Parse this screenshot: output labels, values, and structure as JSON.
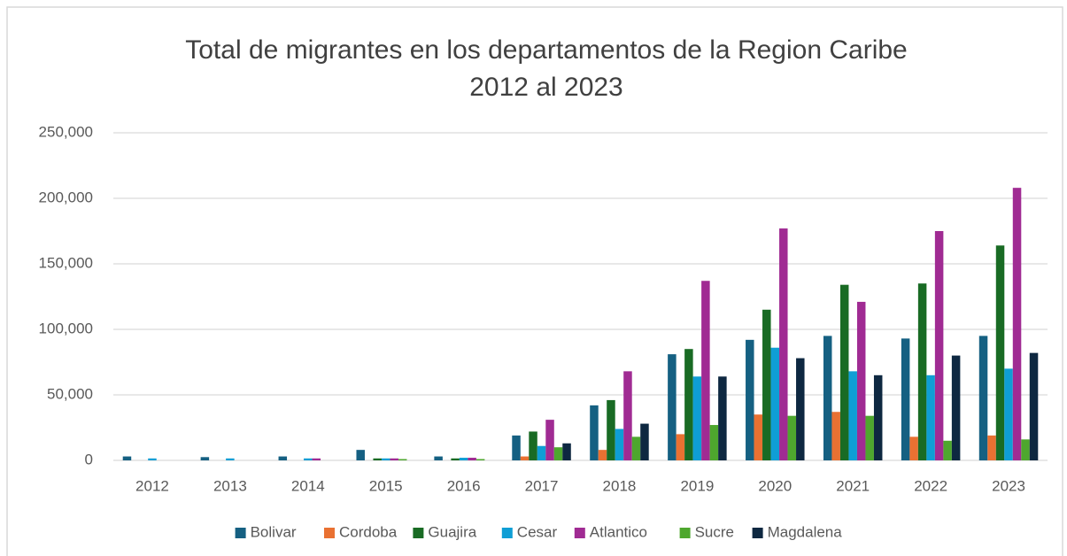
{
  "chart_data": {
    "type": "bar",
    "title": [
      "Total de migrantes en los departamentos de la Region Caribe",
      "2012 al 2023"
    ],
    "categories": [
      "2012",
      "2013",
      "2014",
      "2015",
      "2016",
      "2017",
      "2018",
      "2019",
      "2020",
      "2021",
      "2022",
      "2023"
    ],
    "series": [
      {
        "name": "Bolivar",
        "color": "#156082",
        "values": [
          3000,
          2500,
          3000,
          8000,
          3000,
          19000,
          42000,
          81000,
          92000,
          95000,
          93000,
          95000
        ]
      },
      {
        "name": "Cordoba",
        "color": "#e97132",
        "values": [
          0,
          0,
          0,
          0,
          0,
          3000,
          8000,
          20000,
          35000,
          37000,
          18000,
          19000
        ]
      },
      {
        "name": "Guajira",
        "color": "#196b24",
        "values": [
          0,
          0,
          0,
          1500,
          1500,
          22000,
          46000,
          85000,
          115000,
          134000,
          135000,
          164000
        ]
      },
      {
        "name": "Cesar",
        "color": "#0f9ed5",
        "values": [
          1500,
          1500,
          1500,
          1500,
          2000,
          11000,
          24000,
          64000,
          86000,
          68000,
          65000,
          70000
        ]
      },
      {
        "name": "Atlantico",
        "color": "#a02b93",
        "values": [
          0,
          0,
          1500,
          1500,
          2000,
          31000,
          68000,
          137000,
          177000,
          121000,
          175000,
          208000
        ]
      },
      {
        "name": "Sucre",
        "color": "#4ea72e",
        "values": [
          0,
          0,
          0,
          1000,
          1000,
          10000,
          18000,
          27000,
          34000,
          34000,
          15000,
          16000
        ]
      },
      {
        "name": "Magdalena",
        "color": "#0e2841",
        "values": [
          0,
          0,
          0,
          0,
          0,
          13000,
          28000,
          64000,
          78000,
          65000,
          80000,
          82000
        ]
      }
    ],
    "ylim": [
      0,
      250000
    ],
    "yticks": [
      0,
      {
        "value": 50000,
        "label": "50,000"
      },
      {
        "value": 100000,
        "label": "100,000"
      },
      {
        "value": 150000,
        "label": "150,000"
      },
      {
        "value": 200000,
        "label": "200,000"
      },
      {
        "value": 250000,
        "label": "250,000"
      }
    ],
    "grid": true,
    "legend": "bottom"
  }
}
